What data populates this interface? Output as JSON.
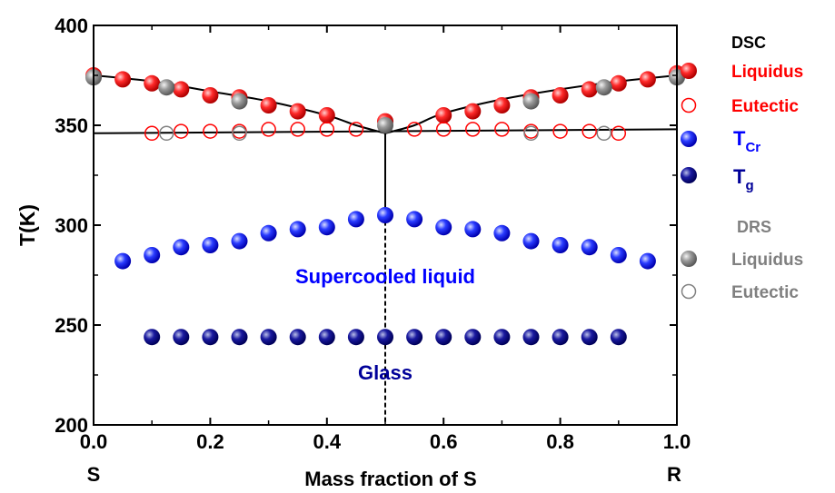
{
  "chart_data": {
    "type": "scatter",
    "title": "",
    "xlabel": "Mass fraction of S",
    "ylabel": "T(K)",
    "xlim": [
      0.0,
      1.0
    ],
    "ylim": [
      200,
      400
    ],
    "xticks": [
      "0.0",
      "0.2",
      "0.4",
      "0.6",
      "0.8",
      "1.0"
    ],
    "yticks": [
      "200",
      "250",
      "300",
      "350",
      "400"
    ],
    "x_end_labels": {
      "left": "S",
      "right": "R"
    },
    "grid": false,
    "legend_position": "right",
    "legend": {
      "dsc_header": "DSC",
      "drs_header": "DRS",
      "items": [
        {
          "key": "dsc_liquidus",
          "text": "Liquidus",
          "color": "#ff0000",
          "marker": "filled-sphere"
        },
        {
          "key": "dsc_eutectic",
          "text": "Eutectic",
          "color": "#ff0000",
          "marker": "open-circle"
        },
        {
          "key": "tcr",
          "text": "T",
          "sub": "Cr",
          "color": "#0000ff",
          "marker": "filled-sphere"
        },
        {
          "key": "tg",
          "text": "T",
          "sub": "g",
          "color": "#000099",
          "marker": "filled-sphere"
        },
        {
          "key": "drs_liquidus",
          "text": "Liquidus",
          "color": "#808080",
          "marker": "filled-sphere"
        },
        {
          "key": "drs_eutectic",
          "text": "Eutectic",
          "color": "#808080",
          "marker": "open-circle"
        }
      ]
    },
    "annotations": [
      {
        "text": "Supercooled liquid",
        "x": 0.5,
        "y": 277,
        "color": "#0000ff"
      },
      {
        "text": "Glass",
        "x": 0.5,
        "y": 230,
        "color": "#000099"
      }
    ],
    "series": [
      {
        "key": "dsc_liquidus",
        "color": "#ff0000",
        "marker": "filled-sphere",
        "x": [
          0.0,
          0.05,
          0.1,
          0.15,
          0.2,
          0.25,
          0.3,
          0.35,
          0.4,
          0.5,
          0.6,
          0.65,
          0.7,
          0.75,
          0.8,
          0.85,
          0.9,
          0.95,
          1.0
        ],
        "y": [
          375,
          373,
          371,
          368,
          365,
          364,
          360,
          357,
          355,
          352,
          355,
          357,
          360,
          364,
          365,
          368,
          371,
          373,
          376
        ]
      },
      {
        "key": "dsc_eutectic",
        "color": "#ff0000",
        "marker": "open-circle",
        "x": [
          0.1,
          0.15,
          0.2,
          0.25,
          0.3,
          0.35,
          0.4,
          0.45,
          0.55,
          0.6,
          0.65,
          0.7,
          0.75,
          0.8,
          0.85,
          0.9
        ],
        "y": [
          346,
          347,
          347,
          347,
          348,
          348,
          348,
          348,
          348,
          348,
          348,
          348,
          347,
          347,
          347,
          346
        ]
      },
      {
        "key": "tcr",
        "color": "#0000ff",
        "marker": "filled-sphere",
        "x": [
          0.05,
          0.1,
          0.15,
          0.2,
          0.25,
          0.3,
          0.35,
          0.4,
          0.45,
          0.5,
          0.55,
          0.6,
          0.65,
          0.7,
          0.75,
          0.8,
          0.85,
          0.9,
          0.95
        ],
        "y": [
          282,
          285,
          289,
          290,
          292,
          296,
          298,
          299,
          303,
          305,
          303,
          299,
          298,
          296,
          292,
          290,
          289,
          285,
          282
        ]
      },
      {
        "key": "tg",
        "color": "#000099",
        "marker": "filled-sphere",
        "x": [
          0.1,
          0.15,
          0.2,
          0.25,
          0.3,
          0.35,
          0.4,
          0.45,
          0.5,
          0.55,
          0.6,
          0.65,
          0.7,
          0.75,
          0.8,
          0.85,
          0.9
        ],
        "y": [
          244,
          244,
          244,
          244,
          244,
          244,
          244,
          244,
          244,
          244,
          244,
          244,
          244,
          244,
          244,
          244,
          244
        ]
      },
      {
        "key": "drs_liquidus",
        "color": "#808080",
        "marker": "filled-sphere",
        "x": [
          0.0,
          0.125,
          0.25,
          0.5,
          0.75,
          0.875,
          1.0
        ],
        "y": [
          374,
          369,
          362,
          350,
          362,
          369,
          374
        ]
      },
      {
        "key": "drs_eutectic",
        "color": "#808080",
        "marker": "open-circle",
        "x": [
          0.125,
          0.25,
          0.75,
          0.875
        ],
        "y": [
          346,
          346,
          346,
          346
        ]
      }
    ],
    "lines": [
      {
        "type": "liquidus-left",
        "x": [
          0.0,
          0.1,
          0.2,
          0.3,
          0.4,
          0.45,
          0.5
        ],
        "y": [
          375,
          372,
          367,
          362,
          355,
          350,
          346
        ]
      },
      {
        "type": "liquidus-right",
        "x": [
          0.5,
          0.55,
          0.6,
          0.7,
          0.8,
          0.9,
          1.0
        ],
        "y": [
          346,
          350,
          356,
          363,
          368,
          372,
          375
        ]
      },
      {
        "type": "eutectic",
        "x": [
          0.0,
          1.0
        ],
        "y": [
          346,
          348
        ]
      },
      {
        "type": "vertical-solid",
        "x": [
          0.5,
          0.5
        ],
        "y": [
          350,
          302
        ]
      },
      {
        "type": "vertical-dashed",
        "x": [
          0.5,
          0.5
        ],
        "y": [
          302,
          200
        ]
      }
    ]
  }
}
